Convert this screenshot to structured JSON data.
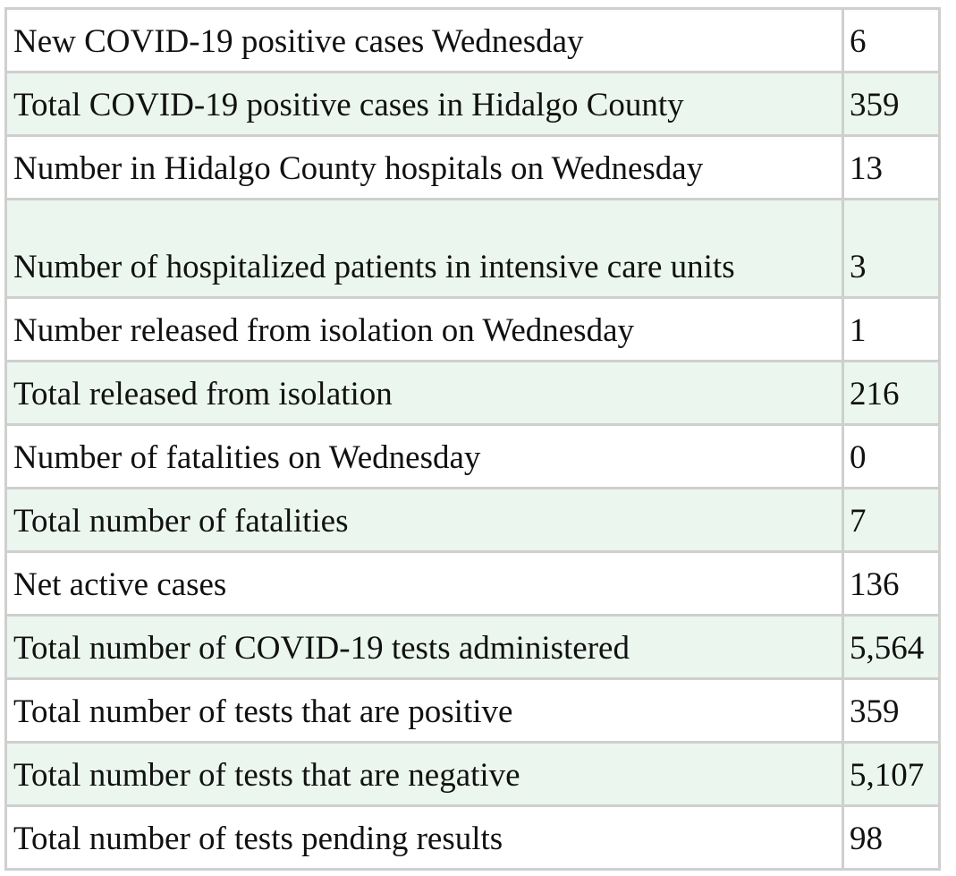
{
  "table": {
    "rows": [
      {
        "label": "New COVID-19 positive cases Wednesday",
        "value": "6"
      },
      {
        "label": "Total COVID-19 positive cases in Hidalgo County",
        "value": "359"
      },
      {
        "label": "Number in Hidalgo County hospitals on Wednesday",
        "value": "13"
      },
      {
        "label": "Number of hospitalized patients in intensive care units",
        "value": "3"
      },
      {
        "label": "Number released from isolation on Wednesday",
        "value": "1"
      },
      {
        "label": "Total released from isolation",
        "value": "216"
      },
      {
        "label": "Number of fatalities on Wednesday",
        "value": "0"
      },
      {
        "label": "Total number of fatalities",
        "value": "7"
      },
      {
        "label": "Net active cases",
        "value": "136"
      },
      {
        "label": "Total number of COVID-19 tests administered",
        "value": "5,564"
      },
      {
        "label": "Total number of tests that are positive",
        "value": "359"
      },
      {
        "label": "Total number of tests that are negative",
        "value": "5,107"
      },
      {
        "label": "Total number of tests pending results",
        "value": "98"
      }
    ]
  },
  "colors": {
    "shaded_row": "#eaf6ee",
    "plain_row": "#ffffff",
    "border": "#cfcfcf",
    "text": "#111111"
  }
}
